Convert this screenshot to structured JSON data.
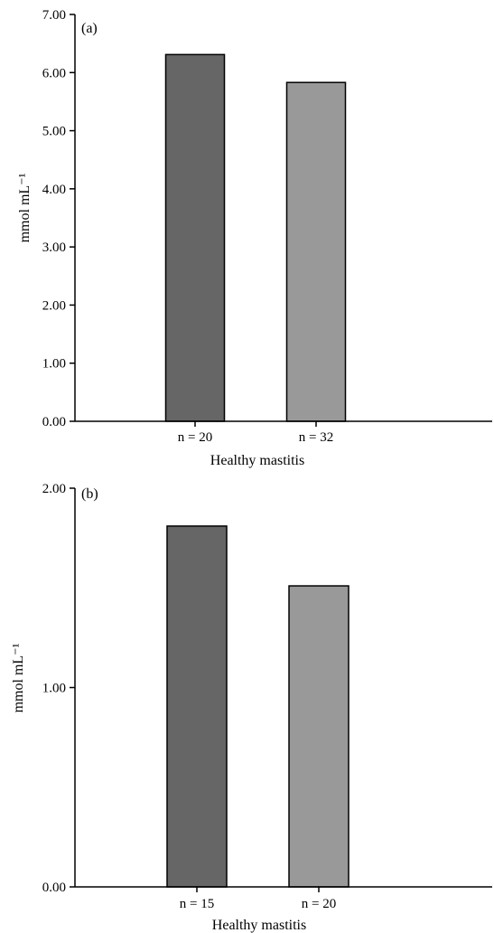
{
  "chart_data": [
    {
      "type": "bar",
      "panel_label": "(a)",
      "ylabel": "mmol mL⁻¹",
      "xlabel": "Healthy mastitis",
      "ylim": [
        0,
        7
      ],
      "yticks": [
        "0.00",
        "1.00",
        "2.00",
        "3.00",
        "4.00",
        "5.00",
        "6.00",
        "7.00"
      ],
      "categories": [
        "n = 20",
        "n = 32"
      ],
      "values": [
        6.31,
        5.83
      ],
      "colors": [
        "#666666",
        "#999999"
      ],
      "grid": false,
      "legend": "none"
    },
    {
      "type": "bar",
      "panel_label": "(b)",
      "ylabel": "mmol mL⁻¹",
      "xlabel": "Healthy mastitis",
      "ylim": [
        0,
        2
      ],
      "yticks": [
        "0.00",
        "1.00",
        "2.00"
      ],
      "categories": [
        "n = 15",
        "n = 20"
      ],
      "values": [
        1.81,
        1.51
      ],
      "colors": [
        "#666666",
        "#999999"
      ],
      "grid": false,
      "legend": "none"
    }
  ]
}
